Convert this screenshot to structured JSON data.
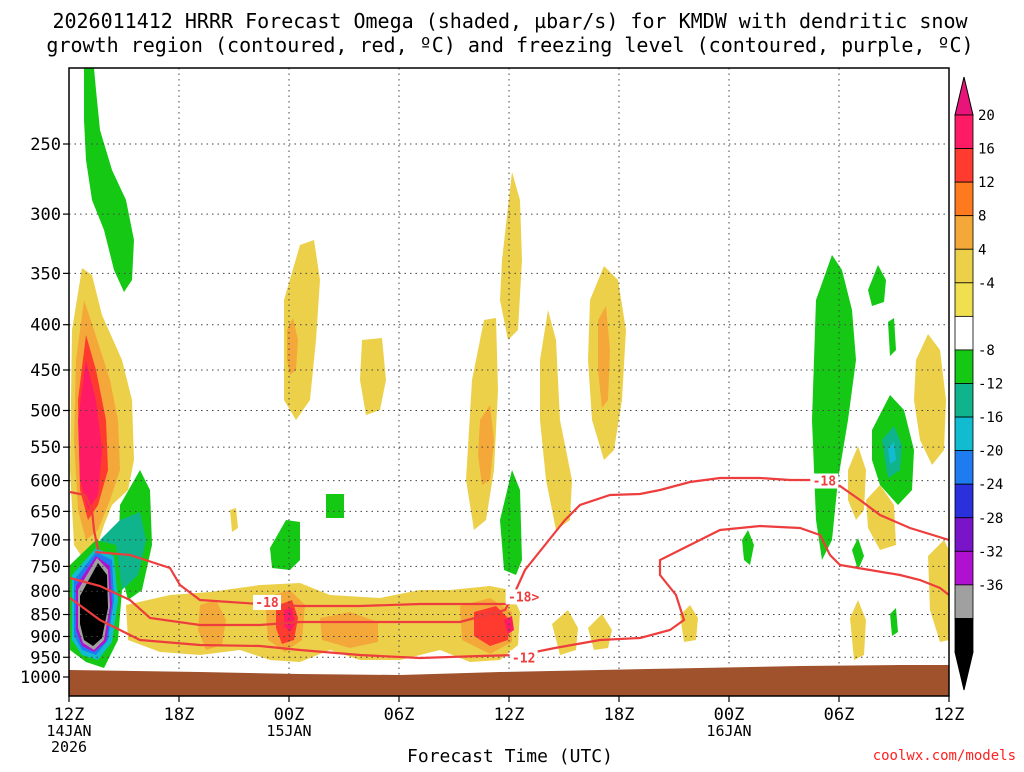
{
  "chart_data": {
    "type": "heatmap",
    "title_line1": "2026011412 HRRR Forecast Omega (shaded, µbar/s) for KMDW with dendritic snow",
    "title_line2": "growth region (contoured, red, ºC) and freezing level (contoured, purple, ºC)",
    "xlabel": "Forecast Time (UTC)",
    "credit": "coolwx.com/models",
    "x_ticks": [
      {
        "h": 0,
        "label": "12Z",
        "sub1": "14JAN",
        "sub2": "2026"
      },
      {
        "h": 6,
        "label": "18Z"
      },
      {
        "h": 12,
        "label": "00Z",
        "sub1": "15JAN"
      },
      {
        "h": 18,
        "label": "06Z"
      },
      {
        "h": 24,
        "label": "12Z"
      },
      {
        "h": 30,
        "label": "18Z"
      },
      {
        "h": 36,
        "label": "00Z",
        "sub1": "16JAN"
      },
      {
        "h": 42,
        "label": "06Z"
      },
      {
        "h": 48,
        "label": "12Z"
      }
    ],
    "xlim": [
      0,
      48
    ],
    "y_levels_hpa": [
      250,
      300,
      350,
      400,
      450,
      500,
      550,
      600,
      650,
      700,
      750,
      800,
      850,
      900,
      950,
      1000
    ],
    "y_tick_labels": [
      "250",
      "300",
      "350",
      "400",
      "450",
      "500",
      "550",
      "600",
      "650",
      "700",
      "750",
      "800",
      "850",
      "900",
      "950",
      "1000"
    ],
    "colorbar": {
      "labels": [
        "20",
        "16",
        "12",
        "8",
        "4",
        "-4",
        "-8",
        "-12",
        "-16",
        "-20",
        "-24",
        "-28",
        "-32",
        "-36"
      ],
      "colors": [
        "#ff1a66",
        "#ff3a2e",
        "#ff7a1e",
        "#f5a83a",
        "#ecd04a",
        "#f0e050",
        "#ffffff",
        "#14c814",
        "#10b48c",
        "#12bcd0",
        "#1e7cf0",
        "#2a30dc",
        "#7a14c8",
        "#b010d0",
        "#a0a0a0",
        "#000000"
      ],
      "top_cap_color": "#e8147a",
      "bottom_cap_color": "#000000"
    },
    "contour_labels": [
      {
        "text": "-18",
        "h": 41.2,
        "p": 603
      },
      {
        "text": "-18",
        "h": 10.8,
        "p": 827
      },
      {
        "text": "-18>",
        "h": 24.8,
        "p": 815
      },
      {
        "text": "-12",
        "h": 24.8,
        "p": 955
      }
    ],
    "ground_color": "#a0522d"
  }
}
